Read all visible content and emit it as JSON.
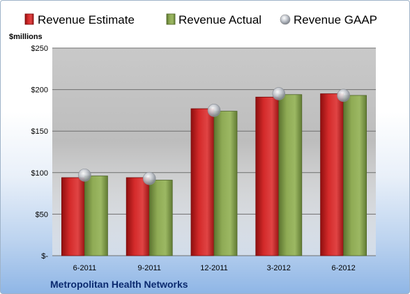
{
  "chart_data": {
    "type": "bar",
    "categories": [
      "6-2011",
      "9-2011",
      "12-2011",
      "3-2012",
      "6-2012"
    ],
    "series": [
      {
        "name": "Revenue Estimate",
        "values": [
          94,
          94,
          177,
          191,
          195
        ],
        "color": "#cc1f1f"
      },
      {
        "name": "Revenue Actual",
        "values": [
          96,
          91,
          174,
          194,
          193
        ],
        "color": "#86a24c"
      },
      {
        "name": "Revenue GAAP",
        "values": [
          97,
          93,
          175,
          195,
          193
        ],
        "color": "#b9bfc8"
      }
    ],
    "ylabel": "$millions",
    "ylim": [
      0,
      250
    ],
    "yticks": [
      0,
      50,
      100,
      150,
      200,
      250
    ],
    "ytick_labels": [
      "$-",
      "$50",
      "$100",
      "$150",
      "$200",
      "$250"
    ],
    "grid": true,
    "legend": "top",
    "company": "Metropolitan Health Networks"
  }
}
